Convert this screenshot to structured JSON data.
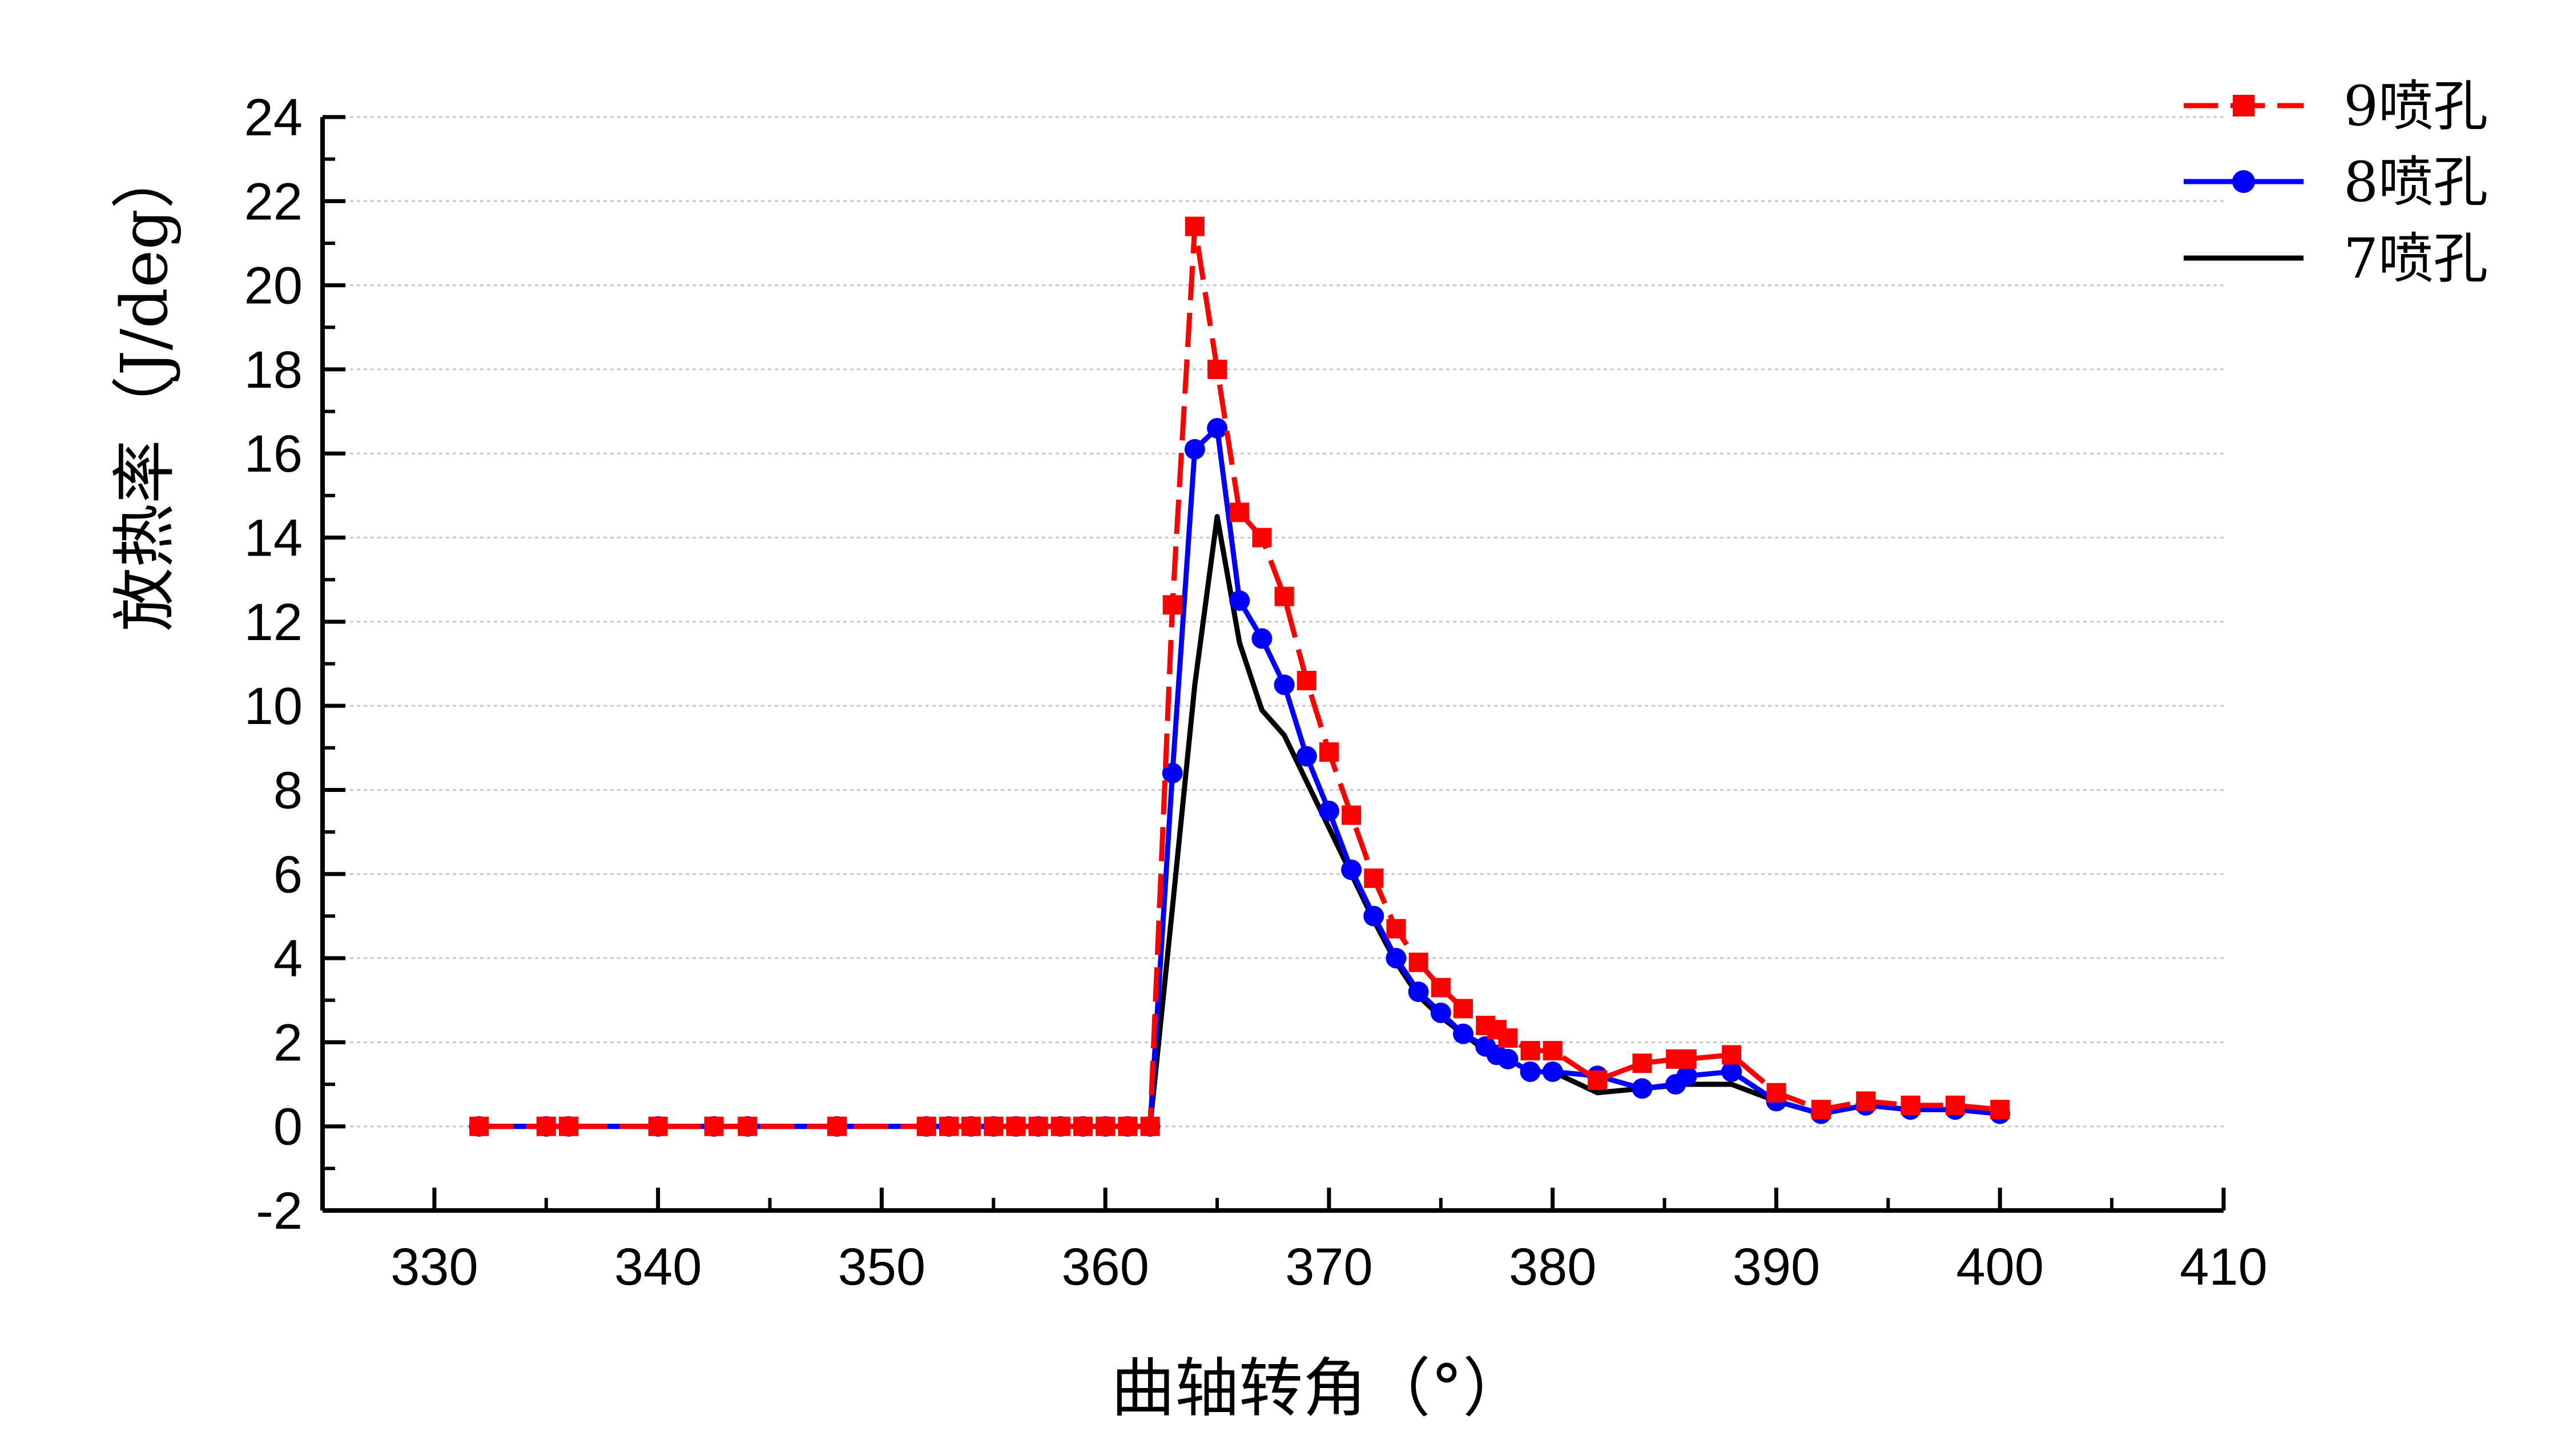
{
  "chart_data": {
    "type": "line",
    "title": "",
    "xlabel": "曲轴转角（°）",
    "ylabel": "放热率（J/deg）",
    "xlim": [
      325,
      410
    ],
    "ylim": [
      -2,
      24
    ],
    "x_ticks": [
      330,
      340,
      350,
      360,
      370,
      380,
      390,
      400,
      410
    ],
    "y_ticks": [
      -2,
      0,
      2,
      4,
      6,
      8,
      10,
      12,
      14,
      16,
      18,
      20,
      22,
      24
    ],
    "grid": "horizontal",
    "legend_position": "top-right",
    "series": [
      {
        "name": "9喷孔",
        "color": "#ff0000",
        "line_style": "dashed",
        "marker": "square",
        "points": [
          [
            332,
            0
          ],
          [
            335,
            0
          ],
          [
            336,
            0
          ],
          [
            340,
            0
          ],
          [
            342.5,
            0
          ],
          [
            344,
            0
          ],
          [
            348,
            0
          ],
          [
            352,
            0
          ],
          [
            353,
            0
          ],
          [
            354,
            0
          ],
          [
            355,
            0
          ],
          [
            356,
            0
          ],
          [
            357,
            0
          ],
          [
            358,
            0
          ],
          [
            359,
            0
          ],
          [
            360,
            0
          ],
          [
            361,
            0
          ],
          [
            362,
            0
          ],
          [
            363,
            12.4
          ],
          [
            364,
            21.4
          ],
          [
            365,
            18.0
          ],
          [
            366,
            14.6
          ],
          [
            367,
            14.0
          ],
          [
            368,
            12.6
          ],
          [
            369,
            10.6
          ],
          [
            370,
            8.9
          ],
          [
            371,
            7.4
          ],
          [
            372,
            5.9
          ],
          [
            373,
            4.7
          ],
          [
            374,
            3.9
          ],
          [
            375,
            3.3
          ],
          [
            376,
            2.8
          ],
          [
            377,
            2.4
          ],
          [
            377.5,
            2.3
          ],
          [
            378,
            2.1
          ],
          [
            379,
            1.8
          ],
          [
            380,
            1.8
          ],
          [
            382,
            1.1
          ],
          [
            384,
            1.5
          ],
          [
            385.5,
            1.6
          ],
          [
            386,
            1.6
          ],
          [
            388,
            1.7
          ],
          [
            390,
            0.8
          ],
          [
            392,
            0.4
          ],
          [
            394,
            0.6
          ],
          [
            396,
            0.5
          ],
          [
            398,
            0.5
          ],
          [
            400,
            0.4
          ]
        ]
      },
      {
        "name": "8喷孔",
        "color": "#0000ff",
        "line_style": "solid",
        "marker": "circle",
        "points": [
          [
            332,
            0
          ],
          [
            335,
            0
          ],
          [
            336,
            0
          ],
          [
            340,
            0
          ],
          [
            342.5,
            0
          ],
          [
            344,
            0
          ],
          [
            348,
            0
          ],
          [
            352,
            0
          ],
          [
            353,
            0
          ],
          [
            354,
            0
          ],
          [
            355,
            0
          ],
          [
            356,
            0
          ],
          [
            357,
            0
          ],
          [
            358,
            0
          ],
          [
            359,
            0
          ],
          [
            360,
            0
          ],
          [
            361,
            0
          ],
          [
            362,
            0
          ],
          [
            363,
            8.4
          ],
          [
            364,
            16.1
          ],
          [
            365,
            16.6
          ],
          [
            366,
            12.5
          ],
          [
            367,
            11.6
          ],
          [
            368,
            10.5
          ],
          [
            369,
            8.8
          ],
          [
            370,
            7.5
          ],
          [
            371,
            6.1
          ],
          [
            372,
            5.0
          ],
          [
            373,
            4.0
          ],
          [
            374,
            3.2
          ],
          [
            375,
            2.7
          ],
          [
            376,
            2.2
          ],
          [
            377,
            1.9
          ],
          [
            377.5,
            1.7
          ],
          [
            378,
            1.6
          ],
          [
            379,
            1.3
          ],
          [
            380,
            1.3
          ],
          [
            382,
            1.2
          ],
          [
            384,
            0.9
          ],
          [
            385.5,
            1.0
          ],
          [
            386,
            1.2
          ],
          [
            388,
            1.3
          ],
          [
            390,
            0.6
          ],
          [
            392,
            0.3
          ],
          [
            394,
            0.5
          ],
          [
            396,
            0.4
          ],
          [
            398,
            0.4
          ],
          [
            400,
            0.3
          ]
        ]
      },
      {
        "name": "7喷孔",
        "color": "#000000",
        "line_style": "solid",
        "marker": "none",
        "points": [
          [
            332,
            0
          ],
          [
            362,
            0
          ],
          [
            363,
            5.2
          ],
          [
            364,
            10.5
          ],
          [
            365,
            14.5
          ],
          [
            366,
            11.5
          ],
          [
            367,
            9.9
          ],
          [
            368,
            9.3
          ],
          [
            369,
            8.2
          ],
          [
            370,
            7.1
          ],
          [
            371,
            6.0
          ],
          [
            372,
            4.9
          ],
          [
            373,
            3.9
          ],
          [
            374,
            3.1
          ],
          [
            375,
            2.6
          ],
          [
            376,
            2.2
          ],
          [
            377,
            1.8
          ],
          [
            378,
            1.6
          ],
          [
            379,
            1.3
          ],
          [
            380,
            1.3
          ],
          [
            382,
            0.8
          ],
          [
            384,
            0.9
          ],
          [
            386,
            1.0
          ],
          [
            388,
            1.0
          ],
          [
            390,
            0.6
          ],
          [
            392,
            0.3
          ],
          [
            394,
            0.5
          ],
          [
            396,
            0.4
          ],
          [
            398,
            0.4
          ],
          [
            400,
            0.3
          ]
        ]
      }
    ]
  }
}
